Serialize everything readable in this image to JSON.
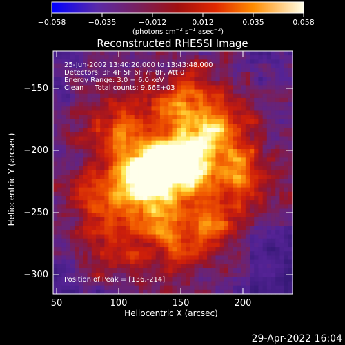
{
  "colorbar": {
    "ticks": [
      "−0.058",
      "−0.035",
      "−0.012",
      "0.012",
      "0.035",
      "0.058"
    ],
    "units_prefix": "(photons cm",
    "units_exp1": "−2",
    "units_mid": " s",
    "units_exp2": "−1",
    "units_mid2": " asec",
    "units_exp3": "−2",
    "units_suffix": ")"
  },
  "plot": {
    "title": "Reconstructed RHESSI Image",
    "info_lines": [
      "25-Jun-2002 13:40:20.000 to 13:43:48.000",
      "Detectors: 3F 4F 5F 6F 7F 8F, Att 0",
      "Energy Range: 3.0 − 6.0 keV",
      "Clean     Total counts: 9.66E+03"
    ],
    "peak_label": "Position of Peak = [136,-214]",
    "xlabel": "Heliocentric X (arcsec)",
    "ylabel": "Heliocentric Y (arcsec)",
    "xticks": [
      "50",
      "100",
      "150",
      "200"
    ],
    "yticks": [
      "−150",
      "−200",
      "−250",
      "−300"
    ]
  },
  "footer": {
    "timestamp": "29-Apr-2022 16:04"
  },
  "chart_data": {
    "type": "heatmap",
    "title": "Reconstructed RHESSI Image",
    "xlabel": "Heliocentric X (arcsec)",
    "ylabel": "Heliocentric Y (arcsec)",
    "xlim": [
      48,
      240
    ],
    "ylim": [
      -315,
      -125
    ],
    "colorscale_range": [
      -0.058,
      0.058
    ],
    "peak": [
      136,
      -214
    ],
    "sources": [
      {
        "x": 136,
        "y": -214,
        "strength": 1.0
      },
      {
        "x": 115,
        "y": -225,
        "strength": 0.85
      },
      {
        "x": 160,
        "y": -206,
        "strength": 0.8
      },
      {
        "x": 175,
        "y": -175,
        "strength": 0.65
      },
      {
        "x": 100,
        "y": -180,
        "strength": 0.55
      },
      {
        "x": 150,
        "y": -160,
        "strength": 0.5
      },
      {
        "x": 200,
        "y": -215,
        "strength": 0.5
      },
      {
        "x": 130,
        "y": -255,
        "strength": 0.5
      },
      {
        "x": 175,
        "y": -255,
        "strength": 0.45
      },
      {
        "x": 80,
        "y": -240,
        "strength": 0.45
      },
      {
        "x": 150,
        "y": -285,
        "strength": 0.35
      },
      {
        "x": 95,
        "y": -280,
        "strength": 0.35
      }
    ]
  }
}
